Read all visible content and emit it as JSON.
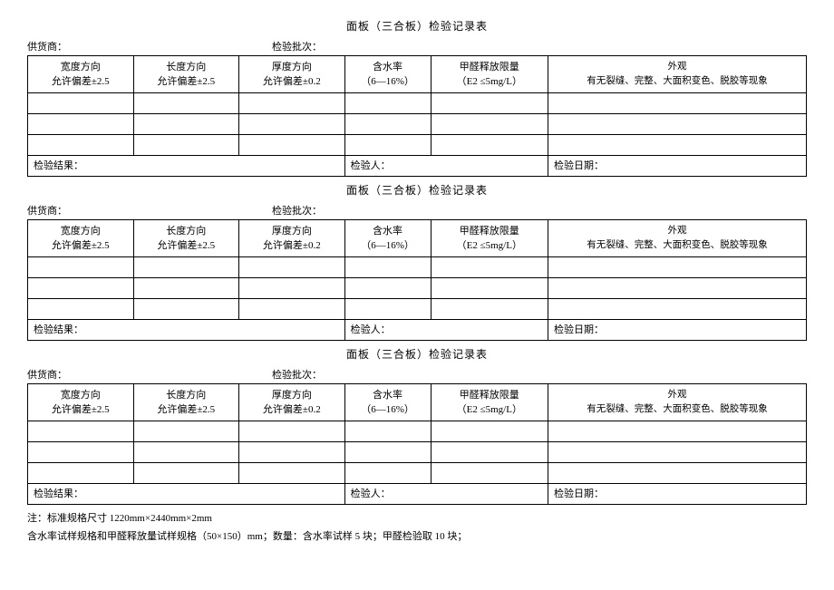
{
  "title": "面板（三合板）检验记录表",
  "meta": {
    "supplier_label": "供货商：",
    "batch_label": "检验批次："
  },
  "cols": {
    "c1_line1": "宽度方向",
    "c1_line2": "允许偏差±2.5",
    "c2_line1": "长度方向",
    "c2_line2": "允许偏差±2.5",
    "c3_line1": "厚度方向",
    "c3_line2": "允许偏差±0.2",
    "c4_line1": "含水率",
    "c4_line2": "（6—16%）",
    "c5_line1": "甲醛释放限量",
    "c5_line2": "（E2 ≤5mg/L）",
    "c6_line1": "外观",
    "c6_line2": "有无裂缝、完整、大面积变色、脱胶等现象"
  },
  "footer": {
    "result_label": "检验结果：",
    "inspector_label": "检验人：",
    "date_label": "检验日期："
  },
  "footnote": {
    "line1": "注：标准规格尺寸 1220mm×2440mm×2mm",
    "line2": "含水率试样规格和甲醛释放量试样规格（50×150）mm；数量：含水率试样 5 块；甲醛检验取 10 块；"
  }
}
